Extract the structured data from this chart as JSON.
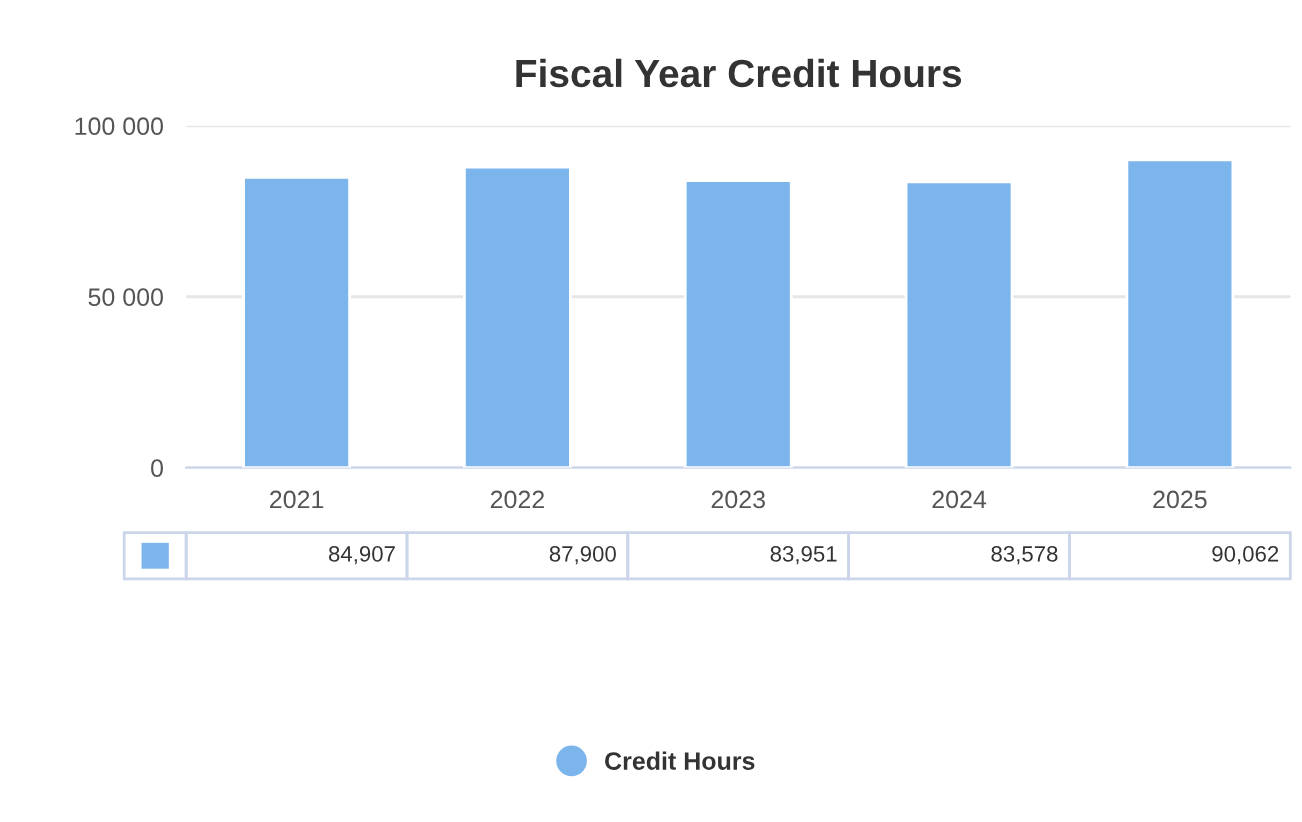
{
  "chart_data": {
    "type": "bar",
    "title": "Fiscal Year Credit Hours",
    "categories": [
      "2021",
      "2022",
      "2023",
      "2024",
      "2025"
    ],
    "series": [
      {
        "name": "Credit Hours",
        "color": "#7cb5ec",
        "values": [
          84907,
          87900,
          83951,
          83578,
          90062
        ],
        "value_labels": [
          "84,907",
          "87,900",
          "83,951",
          "83,578",
          "90,062"
        ]
      }
    ],
    "ylim": [
      0,
      100000
    ],
    "yticks": [
      {
        "value": 0,
        "label": "0"
      },
      {
        "value": 50000,
        "label": "50 000"
      },
      {
        "value": 100000,
        "label": "100 000"
      }
    ],
    "grid": "y",
    "legend": "bottom"
  }
}
